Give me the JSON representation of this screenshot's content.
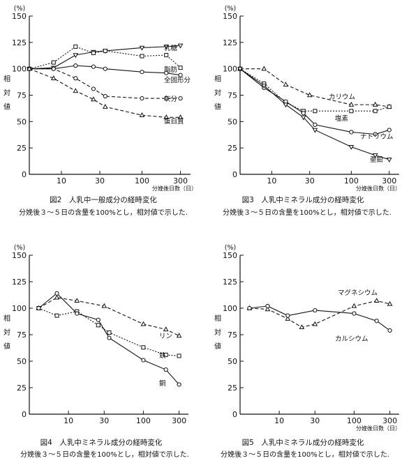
{
  "chart_data": [
    {
      "type": "line",
      "figure_label": "図2",
      "title": "人乳中一般成分の経時変化",
      "note": "分娩後３～５日の含量を100%とし，相対値で示した.",
      "ylabel_unit": "(%)",
      "ylabel": [
        "相",
        "対",
        "値"
      ],
      "xlabel": "分娩後日数（日）",
      "x_scale": "log",
      "xlim": [
        4,
        400
      ],
      "ylim": [
        0,
        150
      ],
      "yticks": [
        "0",
        "25",
        "50",
        "75",
        "100",
        "125",
        "150"
      ],
      "xticks": [
        "10",
        "30",
        "100",
        "300"
      ],
      "series": [
        {
          "name": "乳糖",
          "marker": "triangle-down",
          "dash": "solid",
          "x": [
            4,
            8,
            15,
            25,
            35,
            100,
            200,
            300
          ],
          "y": [
            100,
            101,
            113,
            116,
            117,
            120,
            121,
            122
          ]
        },
        {
          "name": "脂肪",
          "marker": "square",
          "dash": "dotted",
          "x": [
            4,
            8,
            15,
            25,
            35,
            100,
            200,
            300
          ],
          "y": [
            100,
            106,
            121,
            115,
            117,
            112,
            113,
            101
          ]
        },
        {
          "name": "全固形分",
          "marker": "circle",
          "dash": "solid",
          "x": [
            4,
            8,
            15,
            25,
            35,
            100,
            200,
            300
          ],
          "y": [
            100,
            100,
            103,
            102,
            100,
            97,
            96,
            94
          ]
        },
        {
          "name": "灰分",
          "marker": "circle",
          "dash": "dashed",
          "x": [
            4,
            8,
            15,
            25,
            35,
            100,
            200,
            300
          ],
          "y": [
            100,
            100,
            91,
            81,
            74,
            72,
            72,
            72
          ]
        },
        {
          "name": "蛋白質",
          "marker": "triangle-up",
          "dash": "dashed",
          "x": [
            4,
            8,
            15,
            25,
            35,
            100,
            200,
            300
          ],
          "y": [
            100,
            91,
            79,
            71,
            64,
            56,
            54,
            54
          ]
        }
      ]
    },
    {
      "type": "line",
      "figure_label": "図3",
      "title": "人乳中ミネラル成分の経時変化",
      "note": "分娩後３～５日の含量を100%とし，相対値で示した.",
      "ylabel_unit": "(%)",
      "ylabel": [
        "相",
        "対",
        "値"
      ],
      "xlabel": "分娩後日数（日）",
      "x_scale": "log",
      "xlim": [
        4,
        400
      ],
      "ylim": [
        0,
        150
      ],
      "yticks": [
        "0",
        "25",
        "50",
        "75",
        "100",
        "125",
        "150"
      ],
      "xticks": [
        "10",
        "30",
        "100",
        "300"
      ],
      "series": [
        {
          "name": "カリウム",
          "marker": "triangle-up",
          "dash": "dashed",
          "x": [
            4,
            8,
            15,
            30,
            100,
            200,
            300
          ],
          "y": [
            100,
            100,
            85,
            75,
            66,
            66,
            64
          ]
        },
        {
          "name": "塩素",
          "marker": "square",
          "dash": "dotted",
          "x": [
            4,
            8,
            15,
            25,
            35,
            100,
            200,
            300
          ],
          "y": [
            100,
            86,
            68,
            60,
            60,
            60,
            60,
            64
          ]
        },
        {
          "name": "ナトリウム",
          "marker": "circle",
          "dash": "solid",
          "x": [
            4,
            8,
            15,
            25,
            35,
            100,
            200,
            300
          ],
          "y": [
            100,
            82,
            69,
            58,
            47,
            40,
            38,
            42
          ]
        },
        {
          "name": "亜鉛",
          "marker": "triangle-down",
          "dash": "solid",
          "x": [
            4,
            8,
            15,
            25,
            35,
            100,
            200,
            300
          ],
          "y": [
            100,
            84,
            66,
            54,
            42,
            26,
            18,
            14
          ]
        }
      ]
    },
    {
      "type": "line",
      "figure_label": "図4",
      "title": "人乳中ミネラル成分の経時変化",
      "note": "分娩後３～５日の含量を100%とし，相対値で示した.",
      "ylabel_unit": "(%)",
      "ylabel": [
        "相",
        "対",
        "値"
      ],
      "xlabel": "",
      "x_scale": "log",
      "xlim": [
        3,
        400
      ],
      "ylim": [
        0,
        150
      ],
      "yticks": [
        "0",
        "25",
        "50",
        "75",
        "100",
        "125",
        "150"
      ],
      "xticks": [
        "10",
        "30",
        "100",
        "300"
      ],
      "series": [
        {
          "name": "リン",
          "marker": "triangle-up",
          "dash": "dashed",
          "x": [
            4,
            7,
            13,
            30,
            100,
            200,
            300
          ],
          "y": [
            100,
            110,
            107,
            102,
            85,
            80,
            74
          ]
        },
        {
          "name": "鉄",
          "marker": "square",
          "dash": "dotted",
          "x": [
            4,
            7,
            13,
            25,
            35,
            100,
            200,
            300
          ],
          "y": [
            100,
            93,
            97,
            84,
            77,
            63,
            56,
            55
          ]
        },
        {
          "name": "銅",
          "marker": "circle",
          "dash": "solid",
          "x": [
            4,
            7,
            13,
            25,
            35,
            100,
            200,
            300
          ],
          "y": [
            100,
            114,
            95,
            89,
            72,
            51,
            42,
            28
          ]
        }
      ]
    },
    {
      "type": "line",
      "figure_label": "図5",
      "title": "人乳中ミネラル成分の経時変化",
      "note": "分娩後３～５日の含量を100%とし，相対値で示した.",
      "ylabel_unit": "(%)",
      "ylabel": [
        "相",
        "対",
        "値"
      ],
      "xlabel": "分娩後日数（日）",
      "x_scale": "log",
      "xlim": [
        3,
        400
      ],
      "ylim": [
        0,
        150
      ],
      "yticks": [
        "0",
        "25",
        "50",
        "75",
        "100",
        "125",
        "150"
      ],
      "xticks": [
        "10",
        "30",
        "100",
        "300"
      ],
      "series": [
        {
          "name": "マグネシウム",
          "marker": "triangle-up",
          "dash": "dashed",
          "x": [
            4,
            7,
            13,
            20,
            30,
            100,
            200,
            300
          ],
          "y": [
            100,
            99,
            90,
            82,
            85,
            102,
            107,
            104
          ]
        },
        {
          "name": "カルシウム",
          "marker": "circle",
          "dash": "solid",
          "x": [
            4,
            7,
            13,
            30,
            100,
            200,
            300
          ],
          "y": [
            100,
            102,
            93,
            98,
            95,
            88,
            79
          ]
        }
      ]
    }
  ]
}
